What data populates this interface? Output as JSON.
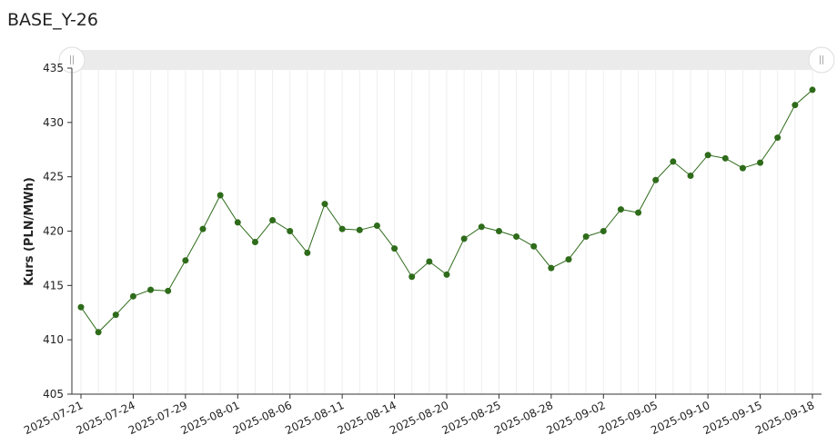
{
  "chart_data": {
    "type": "line",
    "title": "BASE_Y-26",
    "y_label": "Kurs (PLN/MWh)",
    "categories": [
      "2025-07-21",
      null,
      null,
      "2025-07-24",
      null,
      null,
      "2025-07-29",
      null,
      null,
      "2025-08-01",
      null,
      null,
      "2025-08-06",
      null,
      null,
      "2025-08-11",
      null,
      null,
      "2025-08-14",
      null,
      null,
      "2025-08-20",
      null,
      null,
      "2025-08-25",
      null,
      null,
      "2025-08-28",
      null,
      null,
      "2025-09-02",
      null,
      null,
      "2025-09-05",
      null,
      null,
      "2025-09-10",
      null,
      null,
      "2025-09-15",
      null,
      null,
      "2025-09-18"
    ],
    "series": [
      {
        "name": "BASE_Y-26",
        "color": "#2e6b1a",
        "values": [
          413.0,
          410.7,
          412.3,
          414.0,
          414.6,
          414.5,
          417.3,
          420.2,
          423.3,
          420.8,
          419.0,
          421.0,
          420.0,
          418.0,
          422.5,
          420.2,
          420.1,
          420.5,
          418.4,
          415.8,
          417.2,
          416.0,
          419.3,
          420.4,
          420.0,
          419.5,
          418.6,
          416.6,
          417.4,
          419.5,
          420.0,
          422.0,
          421.7,
          424.7,
          426.4,
          425.1,
          427.0,
          426.7,
          425.8,
          426.3,
          428.6,
          431.6,
          433.0
        ]
      }
    ],
    "ylim": [
      405,
      435
    ],
    "yticks": [
      405,
      410,
      415,
      420,
      425,
      430,
      435
    ],
    "grid": true
  }
}
